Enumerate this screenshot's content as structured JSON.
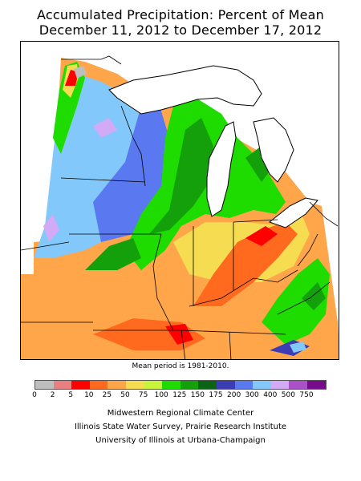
{
  "title_line1": "Accumulated Precipitation: Percent of Mean",
  "title_line2": "December 11, 2012 to December 17, 2012",
  "mean_period": "Mean period is 1981-2010.",
  "legend": {
    "labels": [
      "0",
      "2",
      "5",
      "10",
      "25",
      "50",
      "75",
      "100",
      "125",
      "150",
      "175",
      "200",
      "300",
      "400",
      "500",
      "750"
    ],
    "colors": [
      "#bebebe",
      "#e88080",
      "#ff0000",
      "#ff6a1e",
      "#ffa64a",
      "#f5dc50",
      "#c8f53c",
      "#1edc00",
      "#14a00a",
      "#0a6414",
      "#3c3cb4",
      "#5a78f0",
      "#82c8fa",
      "#d2aaf5",
      "#aa50c8",
      "#780a8c"
    ]
  },
  "credits": {
    "line1": "Midwestern Regional Climate Center",
    "line2": "Illinois State Water Survey, Prairie Research Institute",
    "line3": "University of Illinois at Urbana-Champaign"
  }
}
